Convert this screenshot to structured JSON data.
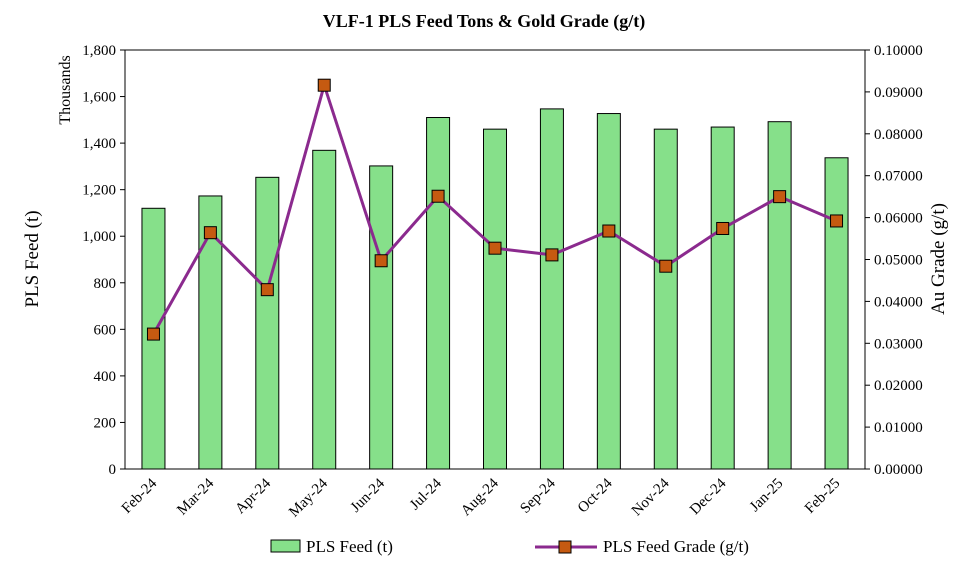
{
  "chart_data": {
    "type": "bar+line",
    "title": "VLF-1 PLS Feed Tons  & Gold Grade (g/t)",
    "categories": [
      "Feb-24",
      "Mar-24",
      "Apr-24",
      "May-24",
      "Jun-24",
      "Jul-24",
      "Aug-24",
      "Sep-24",
      "Oct-24",
      "Nov-24",
      "Dec-24",
      "Jan-25",
      "Feb-25"
    ],
    "series": [
      {
        "name": "PLS Feed (t)",
        "kind": "bar",
        "axis": "left",
        "color": "#86E08A",
        "values": [
          1120,
          1173,
          1253,
          1369,
          1302,
          1510,
          1460,
          1547,
          1527,
          1460,
          1469,
          1492,
          1337
        ]
      },
      {
        "name": "PLS Feed Grade (g/t)",
        "kind": "line",
        "axis": "right",
        "color": "#8B2A8E",
        "marker_color": "#C55A11",
        "values": [
          0.0322,
          0.0564,
          0.0428,
          0.0916,
          0.0497,
          0.0651,
          0.0527,
          0.0511,
          0.0568,
          0.0484,
          0.0574,
          0.065,
          0.0592
        ]
      }
    ],
    "ylabel_left": "PLS Feed (t)",
    "ylabel_left_units": "Thousands",
    "ylabel_right": "Au Grade  (g/t)",
    "ylim_left": [
      0,
      1800
    ],
    "ylim_right": [
      0,
      0.1
    ],
    "yticks_left": [
      "0",
      "200",
      "400",
      "600",
      "800",
      "1,000",
      "1,200",
      "1,400",
      "1,600",
      "1,800"
    ],
    "yticks_right": [
      "0.00000",
      "0.01000",
      "0.02000",
      "0.03000",
      "0.04000",
      "0.05000",
      "0.06000",
      "0.07000",
      "0.08000",
      "0.09000",
      "0.10000"
    ],
    "legend_position": "bottom",
    "grid": false
  }
}
